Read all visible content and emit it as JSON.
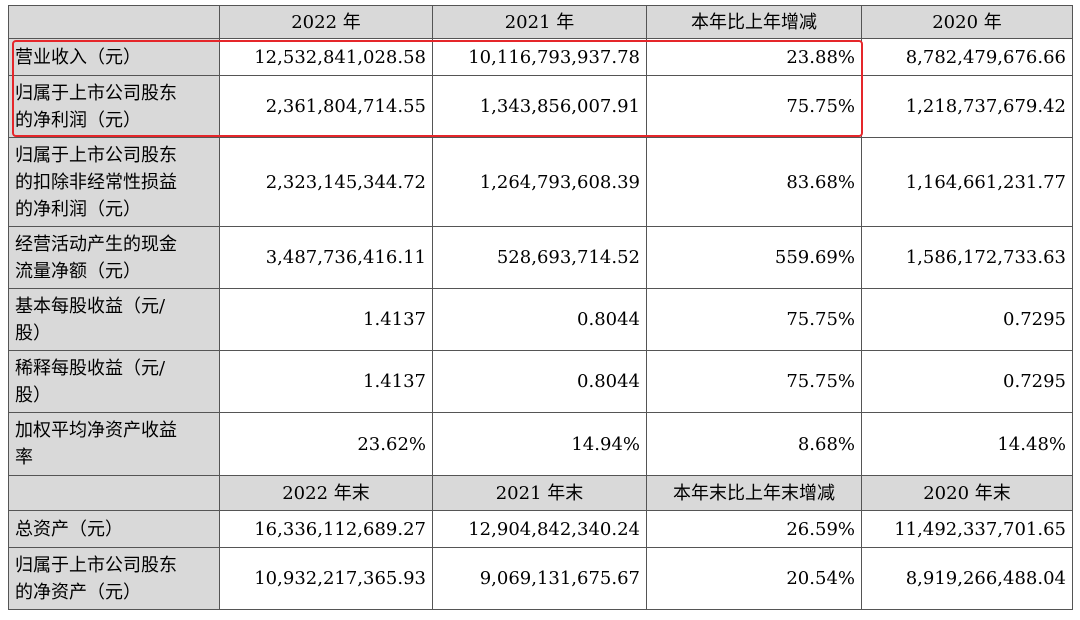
{
  "header1": [
    "2022 年",
    "2021 年",
    "本年比上年增减",
    "2020 年"
  ],
  "header2": [
    "2022 年末",
    "2021 年末",
    "本年末比上年末增减",
    "2020 年末"
  ],
  "rows1": [
    {
      "label": "营业收入（元）",
      "v": [
        "12,532,841,028.58",
        "10,116,793,937.78",
        "23.88%",
        "8,782,479,676.66"
      ]
    },
    {
      "label": "归属于上市公司股东\n的净利润（元）",
      "v": [
        "2,361,804,714.55",
        "1,343,856,007.91",
        "75.75%",
        "1,218,737,679.42"
      ]
    },
    {
      "label": "归属于上市公司股东\n的扣除非经常性损益\n的净利润（元）",
      "v": [
        "2,323,145,344.72",
        "1,264,793,608.39",
        "83.68%",
        "1,164,661,231.77"
      ]
    },
    {
      "label": "经营活动产生的现金\n流量净额（元）",
      "v": [
        "3,487,736,416.11",
        "528,693,714.52",
        "559.69%",
        "1,586,172,733.63"
      ]
    },
    {
      "label": "基本每股收益（元/\n股）",
      "v": [
        "1.4137",
        "0.8044",
        "75.75%",
        "0.7295"
      ]
    },
    {
      "label": "稀释每股收益（元/\n股）",
      "v": [
        "1.4137",
        "0.8044",
        "75.75%",
        "0.7295"
      ]
    },
    {
      "label": "加权平均净资产收益\n率",
      "v": [
        "23.62%",
        "14.94%",
        "8.68%",
        "14.48%"
      ]
    }
  ],
  "rows2": [
    {
      "label": "总资产（元）",
      "v": [
        "16,336,112,689.27",
        "12,904,842,340.24",
        "26.59%",
        "11,492,337,701.65"
      ]
    },
    {
      "label": "归属于上市公司股东\n的净资产（元）",
      "v": [
        "10,932,217,365.93",
        "9,069,131,675.67",
        "20.54%",
        "8,919,266,488.04"
      ]
    }
  ],
  "highlight_color": "#e5262a"
}
